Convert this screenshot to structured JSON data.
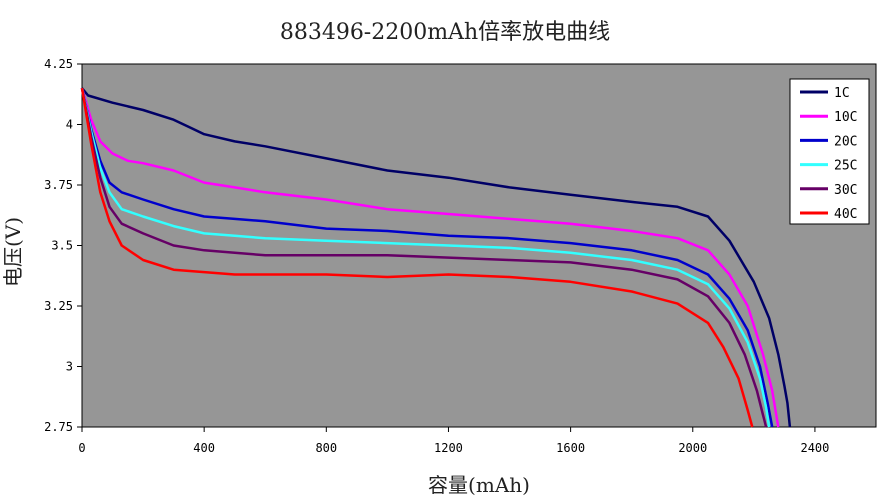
{
  "chart_data": {
    "type": "line",
    "title": "883496-2200mAh倍率放电曲线",
    "xlabel": "容量(mAh)",
    "ylabel": "电压(V)",
    "xlim": [
      0,
      2600
    ],
    "ylim": [
      2.75,
      4.25
    ],
    "x_ticks": [
      "0",
      "400",
      "800",
      "1200",
      "1600",
      "2000",
      "2400"
    ],
    "y_ticks": [
      "2.75",
      "3",
      "3.25",
      "3.5",
      "3.75",
      "4",
      "4.25"
    ],
    "plot_background": "#969696",
    "legend_position": "top-right",
    "grid": false,
    "series": [
      {
        "name": "1C",
        "color": "#000066",
        "points": [
          [
            0,
            4.15
          ],
          [
            20,
            4.12
          ],
          [
            100,
            4.09
          ],
          [
            200,
            4.06
          ],
          [
            300,
            4.02
          ],
          [
            400,
            3.96
          ],
          [
            500,
            3.93
          ],
          [
            600,
            3.91
          ],
          [
            800,
            3.86
          ],
          [
            1000,
            3.81
          ],
          [
            1200,
            3.78
          ],
          [
            1400,
            3.74
          ],
          [
            1600,
            3.71
          ],
          [
            1800,
            3.68
          ],
          [
            1950,
            3.66
          ],
          [
            2050,
            3.62
          ],
          [
            2120,
            3.52
          ],
          [
            2200,
            3.35
          ],
          [
            2250,
            3.2
          ],
          [
            2280,
            3.05
          ],
          [
            2300,
            2.92
          ],
          [
            2310,
            2.85
          ],
          [
            2318,
            2.75
          ]
        ]
      },
      {
        "name": "10C",
        "color": "#ff00ff",
        "points": [
          [
            0,
            4.15
          ],
          [
            30,
            4.02
          ],
          [
            60,
            3.93
          ],
          [
            100,
            3.88
          ],
          [
            150,
            3.85
          ],
          [
            200,
            3.84
          ],
          [
            300,
            3.81
          ],
          [
            400,
            3.76
          ],
          [
            500,
            3.74
          ],
          [
            600,
            3.72
          ],
          [
            800,
            3.69
          ],
          [
            1000,
            3.65
          ],
          [
            1200,
            3.63
          ],
          [
            1400,
            3.61
          ],
          [
            1600,
            3.59
          ],
          [
            1800,
            3.56
          ],
          [
            1950,
            3.53
          ],
          [
            2050,
            3.48
          ],
          [
            2120,
            3.38
          ],
          [
            2180,
            3.25
          ],
          [
            2230,
            3.05
          ],
          [
            2260,
            2.9
          ],
          [
            2280,
            2.75
          ]
        ]
      },
      {
        "name": "20C",
        "color": "#0000cc",
        "points": [
          [
            0,
            4.15
          ],
          [
            30,
            3.98
          ],
          [
            60,
            3.85
          ],
          [
            90,
            3.76
          ],
          [
            130,
            3.72
          ],
          [
            200,
            3.69
          ],
          [
            300,
            3.65
          ],
          [
            400,
            3.62
          ],
          [
            500,
            3.61
          ],
          [
            600,
            3.6
          ],
          [
            800,
            3.57
          ],
          [
            1000,
            3.56
          ],
          [
            1200,
            3.54
          ],
          [
            1400,
            3.53
          ],
          [
            1600,
            3.51
          ],
          [
            1800,
            3.48
          ],
          [
            1950,
            3.44
          ],
          [
            2050,
            3.38
          ],
          [
            2120,
            3.28
          ],
          [
            2180,
            3.15
          ],
          [
            2220,
            3.0
          ],
          [
            2245,
            2.85
          ],
          [
            2260,
            2.75
          ]
        ]
      },
      {
        "name": "25C",
        "color": "#33ffff",
        "points": [
          [
            0,
            4.15
          ],
          [
            30,
            3.97
          ],
          [
            60,
            3.82
          ],
          [
            90,
            3.72
          ],
          [
            130,
            3.65
          ],
          [
            200,
            3.62
          ],
          [
            300,
            3.58
          ],
          [
            400,
            3.55
          ],
          [
            500,
            3.54
          ],
          [
            600,
            3.53
          ],
          [
            800,
            3.52
          ],
          [
            1000,
            3.51
          ],
          [
            1200,
            3.5
          ],
          [
            1400,
            3.49
          ],
          [
            1600,
            3.47
          ],
          [
            1800,
            3.44
          ],
          [
            1950,
            3.4
          ],
          [
            2050,
            3.34
          ],
          [
            2120,
            3.24
          ],
          [
            2180,
            3.1
          ],
          [
            2220,
            2.95
          ],
          [
            2240,
            2.83
          ],
          [
            2250,
            2.75
          ]
        ]
      },
      {
        "name": "30C",
        "color": "#660066",
        "points": [
          [
            0,
            4.15
          ],
          [
            30,
            3.95
          ],
          [
            60,
            3.78
          ],
          [
            90,
            3.66
          ],
          [
            130,
            3.59
          ],
          [
            200,
            3.55
          ],
          [
            300,
            3.5
          ],
          [
            400,
            3.48
          ],
          [
            500,
            3.47
          ],
          [
            600,
            3.46
          ],
          [
            800,
            3.46
          ],
          [
            1000,
            3.46
          ],
          [
            1200,
            3.45
          ],
          [
            1400,
            3.44
          ],
          [
            1600,
            3.43
          ],
          [
            1800,
            3.4
          ],
          [
            1950,
            3.36
          ],
          [
            2050,
            3.29
          ],
          [
            2120,
            3.18
          ],
          [
            2170,
            3.05
          ],
          [
            2210,
            2.9
          ],
          [
            2230,
            2.8
          ],
          [
            2240,
            2.75
          ]
        ]
      },
      {
        "name": "40C",
        "color": "#ff0000",
        "points": [
          [
            0,
            4.15
          ],
          [
            30,
            3.92
          ],
          [
            60,
            3.72
          ],
          [
            90,
            3.6
          ],
          [
            130,
            3.5
          ],
          [
            200,
            3.44
          ],
          [
            300,
            3.4
          ],
          [
            400,
            3.39
          ],
          [
            500,
            3.38
          ],
          [
            600,
            3.38
          ],
          [
            800,
            3.38
          ],
          [
            1000,
            3.37
          ],
          [
            1200,
            3.38
          ],
          [
            1400,
            3.37
          ],
          [
            1600,
            3.35
          ],
          [
            1800,
            3.31
          ],
          [
            1950,
            3.26
          ],
          [
            2050,
            3.18
          ],
          [
            2100,
            3.08
          ],
          [
            2150,
            2.95
          ],
          [
            2180,
            2.82
          ],
          [
            2195,
            2.75
          ]
        ]
      }
    ]
  }
}
